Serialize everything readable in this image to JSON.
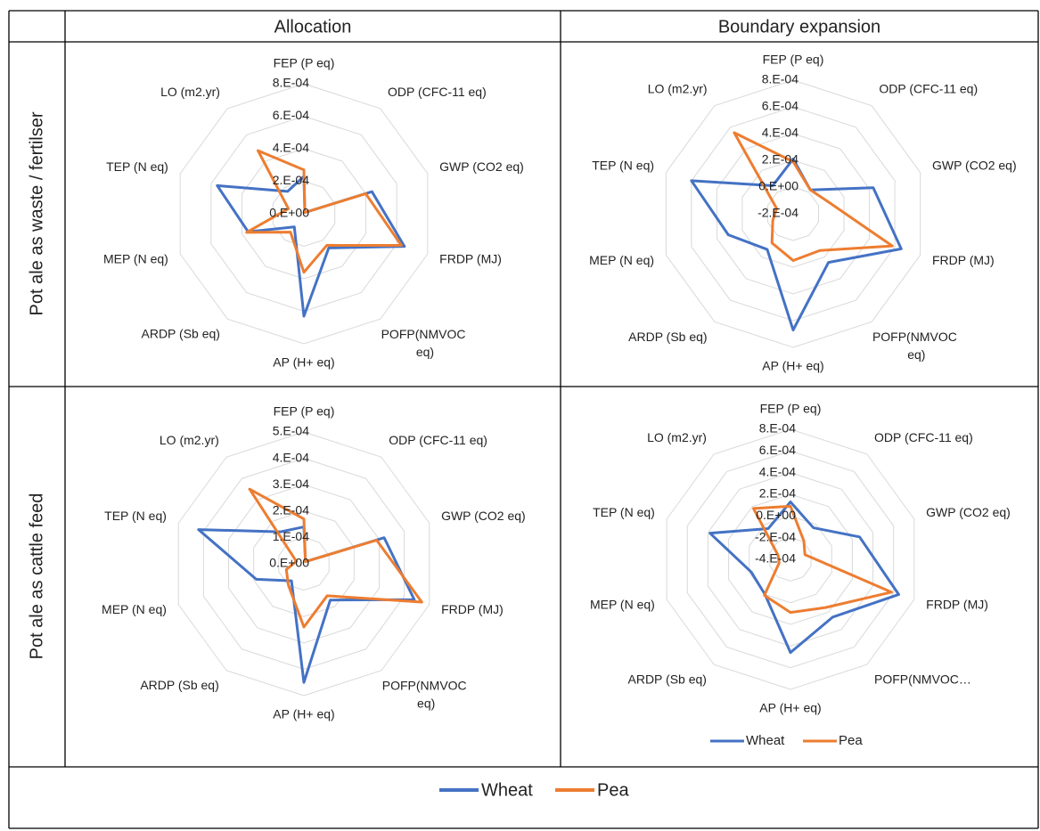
{
  "table": {
    "column_headers": [
      "Allocation",
      "Boundary expansion"
    ],
    "row_headers": [
      "Pot ale as waste / fertilser",
      "Pot ale as cattle feed"
    ]
  },
  "chart_data": [
    {
      "type": "radar",
      "grid": true,
      "categories": [
        "FEP (P eq)",
        "ODP (CFC-11 eq)",
        "GWP (CO2 eq)",
        "FRDP (MJ)",
        "POFP(NMVOC eq)",
        "AP (H+ eq)",
        "ARDP (Sb eq)",
        "MEP (N eq)",
        "TEP (N eq)",
        "LO (m2.yr)"
      ],
      "series": [
        {
          "name": "Wheat",
          "color": "#4472c4",
          "values": [
            0.00023,
            1e-05,
            0.00044,
            0.00065,
            0.00026,
            0.00063,
            0.0001,
            0.00036,
            0.00056,
            0.00017
          ]
        },
        {
          "name": "Pea",
          "color": "#ed7d31",
          "values": [
            0.00027,
            1e-05,
            0.0004,
            0.00063,
            0.00024,
            0.00036,
            0.00014,
            0.00037,
            0.0001,
            0.00048
          ]
        }
      ],
      "ylim": [
        0,
        0.0008
      ],
      "yticks": [
        {
          "value": 0,
          "label": "0.E+00"
        },
        {
          "value": 0.0002,
          "label": "2.E-04"
        },
        {
          "value": 0.0004,
          "label": "4.E-04"
        },
        {
          "value": 0.0006,
          "label": "6.E-04"
        },
        {
          "value": 0.0008,
          "label": "8.E-04"
        }
      ]
    },
    {
      "type": "radar",
      "grid": true,
      "categories": [
        "FEP (P eq)",
        "ODP (CFC-11 eq)",
        "GWP (CO2 eq)",
        "FRDP (MJ)",
        "POFP(NMVOC eq)",
        "AP (H+ eq)",
        "ARDP (Sb eq)",
        "MEP (N eq)",
        "TEP (N eq)",
        "LO (m2.yr)"
      ],
      "series": [
        {
          "name": "Wheat",
          "color": "#4472c4",
          "values": [
            0.00021,
            2e-05,
            0.00043,
            0.00065,
            0.00025,
            0.00067,
            0.00013,
            0.00031,
            0.0006,
            6e-05
          ]
        },
        {
          "name": "Pea",
          "color": "#ed7d31",
          "values": [
            0.00019,
            2e-05,
            8e-05,
            0.00058,
            0.00014,
            0.00015,
            7e-05,
            -4e-05,
            -7e-05,
            0.00055
          ]
        }
      ],
      "ylim": [
        -0.0002,
        0.0008
      ],
      "yticks": [
        {
          "value": -0.0002,
          "label": "-2.E-04"
        },
        {
          "value": 0,
          "label": "0.E+00"
        },
        {
          "value": 0.0002,
          "label": "2.E-04"
        },
        {
          "value": 0.0004,
          "label": "4.E-04"
        },
        {
          "value": 0.0006,
          "label": "6.E-04"
        },
        {
          "value": 0.0008,
          "label": "8.E-04"
        }
      ]
    },
    {
      "type": "radar",
      "grid": true,
      "categories": [
        "FEP (P eq)",
        "ODP (CFC-11 eq)",
        "GWP (CO2 eq)",
        "FRDP (MJ)",
        "POFP(NMVOC eq)",
        "AP (H+ eq)",
        "ARDP (Sb eq)",
        "MEP (N eq)",
        "TEP (N eq)",
        "LO (m2.yr)"
      ],
      "series": [
        {
          "name": "Wheat",
          "color": "#4472c4",
          "values": [
            0.00014,
            1e-05,
            0.00032,
            0.00044,
            0.00017,
            0.00045,
            8e-05,
            0.00019,
            0.00042,
            0.00015
          ]
        },
        {
          "name": "Pea",
          "color": "#ed7d31",
          "values": [
            0.00017,
            1e-05,
            0.00029,
            0.00047,
            0.00015,
            0.00024,
            0.0001,
            7e-05,
            3e-05,
            0.00035
          ]
        }
      ],
      "ylim": [
        0,
        0.0005
      ],
      "yticks": [
        {
          "value": 0,
          "label": "0.E+00"
        },
        {
          "value": 0.0001,
          "label": "1.E-04"
        },
        {
          "value": 0.0002,
          "label": "2.E-04"
        },
        {
          "value": 0.0003,
          "label": "3.E-04"
        },
        {
          "value": 0.0004,
          "label": "4.E-04"
        },
        {
          "value": 0.0005,
          "label": "5.E-04"
        }
      ]
    },
    {
      "type": "radar",
      "grid": true,
      "legend": "bottom",
      "categories": [
        "FEP (P eq)",
        "ODP (CFC-11 eq)",
        "GWP (CO2 eq)",
        "FRDP (MJ)",
        "POFP(NMVOC…",
        "AP (H+ eq)",
        "ARDP (Sb eq)",
        "MEP (N eq)",
        "TEP (N eq)",
        "LO (m2.yr)"
      ],
      "series": [
        {
          "name": "Wheat",
          "color": "#4472c4",
          "values": [
            0.00013,
            -4e-05,
            0.00027,
            0.00065,
            0.00026,
            0.00046,
            0,
            -2e-05,
            0.00038,
            -5e-05
          ]
        },
        {
          "name": "Pea",
          "color": "#ed7d31",
          "values": [
            9e-05,
            -0.00019,
            -0.00026,
            0.00058,
            0.00015,
            9e-05,
            1e-05,
            -0.00029,
            -0.00028,
            0.00018
          ]
        }
      ],
      "ylim": [
        -0.0004,
        0.0008
      ],
      "yticks": [
        {
          "value": -0.0004,
          "label": "-4.E-04"
        },
        {
          "value": -0.0002,
          "label": "-2.E-04"
        },
        {
          "value": 0,
          "label": "0.E+00"
        },
        {
          "value": 0.0002,
          "label": "2.E-04"
        },
        {
          "value": 0.0004,
          "label": "4.E-04"
        },
        {
          "value": 0.0006,
          "label": "6.E-04"
        },
        {
          "value": 0.0008,
          "label": "8.E-04"
        }
      ]
    }
  ]
}
